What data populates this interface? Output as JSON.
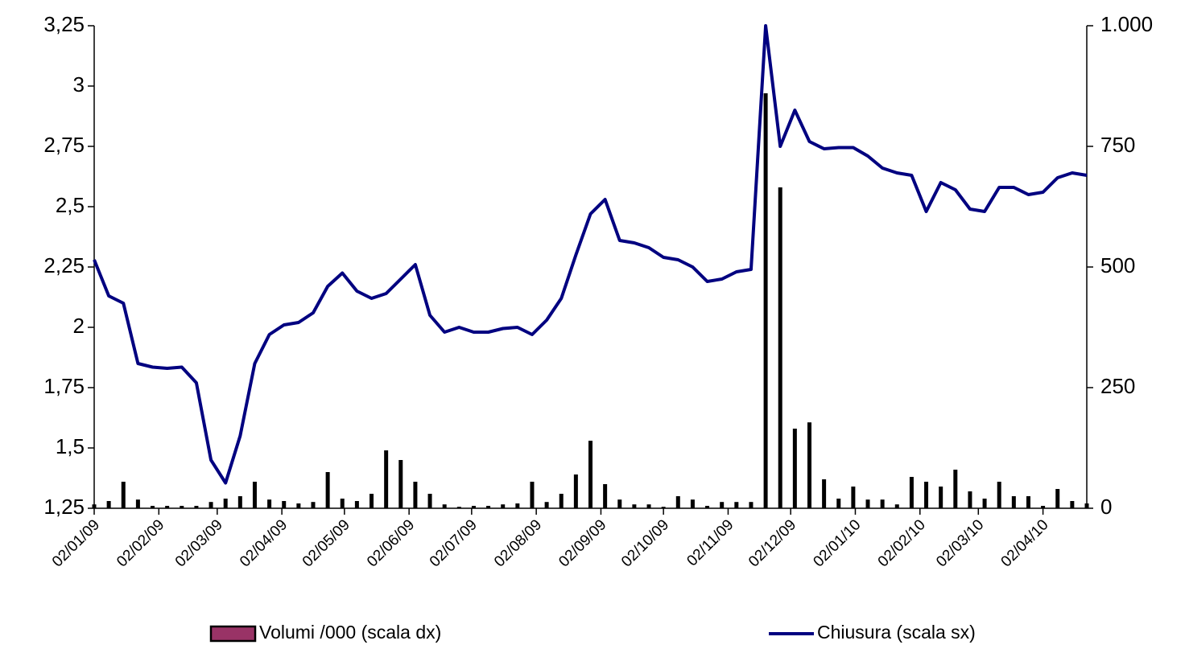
{
  "chart_data": {
    "type": "bar_line",
    "x": [
      "02/01/09",
      "09/01/09",
      "16/01/09",
      "23/01/09",
      "30/01/09",
      "06/02/09",
      "13/02/09",
      "20/02/09",
      "27/02/09",
      "06/03/09",
      "13/03/09",
      "20/03/09",
      "27/03/09",
      "03/04/09",
      "10/04/09",
      "17/04/09",
      "24/04/09",
      "01/05/09",
      "08/05/09",
      "15/05/09",
      "22/05/09",
      "29/05/09",
      "05/06/09",
      "12/06/09",
      "19/06/09",
      "26/06/09",
      "03/07/09",
      "10/07/09",
      "17/07/09",
      "24/07/09",
      "31/07/09",
      "07/08/09",
      "14/08/09",
      "21/08/09",
      "28/08/09",
      "04/09/09",
      "11/09/09",
      "18/09/09",
      "25/09/09",
      "02/10/09",
      "09/10/09",
      "16/10/09",
      "23/10/09",
      "30/10/09",
      "06/11/09",
      "13/11/09",
      "20/11/09",
      "27/11/09",
      "04/12/09",
      "11/12/09",
      "18/12/09",
      "25/12/09",
      "01/01/10",
      "08/01/10",
      "15/01/10",
      "22/01/10",
      "29/01/10",
      "05/02/10",
      "12/02/10",
      "19/02/10",
      "26/02/10",
      "05/03/10",
      "12/03/10",
      "19/03/10",
      "26/03/10",
      "02/04/10",
      "09/04/10",
      "16/04/10",
      "23/04/10"
    ],
    "series": [
      {
        "name": "Volumi /000 (scala dx)",
        "type": "bar",
        "axis": "y2",
        "color": "#000000",
        "legend_color": "#993366",
        "values": [
          8,
          15,
          55,
          18,
          5,
          5,
          5,
          5,
          13,
          20,
          25,
          55,
          18,
          15,
          10,
          13,
          75,
          20,
          15,
          30,
          120,
          100,
          55,
          30,
          8,
          3,
          5,
          5,
          8,
          10,
          55,
          13,
          30,
          70,
          140,
          50,
          18,
          8,
          8,
          3,
          25,
          18,
          5,
          13,
          13,
          13,
          860,
          665,
          165,
          178,
          60,
          20,
          45,
          18,
          18,
          8,
          65,
          55,
          45,
          80,
          35,
          20,
          55,
          25,
          25,
          5,
          40,
          15,
          10
        ]
      },
      {
        "name": "Chiusura (scala sx)",
        "type": "line",
        "axis": "y",
        "color": "#000080",
        "values": [
          2.28,
          2.13,
          2.1,
          1.85,
          1.835,
          1.83,
          1.835,
          1.77,
          1.45,
          1.355,
          1.55,
          1.85,
          1.97,
          2.01,
          2.02,
          2.06,
          2.17,
          2.225,
          2.15,
          2.12,
          2.14,
          2.2,
          2.26,
          2.05,
          1.98,
          2.0,
          1.98,
          1.98,
          1.995,
          2.0,
          1.97,
          2.03,
          2.12,
          2.3,
          2.47,
          2.53,
          2.36,
          2.35,
          2.33,
          2.29,
          2.28,
          2.25,
          2.19,
          2.2,
          2.23,
          2.24,
          3.25,
          2.75,
          2.9,
          2.77,
          2.74,
          2.745,
          2.745,
          2.71,
          2.66,
          2.64,
          2.63,
          2.48,
          2.6,
          2.57,
          2.49,
          2.48,
          2.58,
          2.58,
          2.55,
          2.56,
          2.62,
          2.64,
          2.63
        ]
      }
    ],
    "xlim": [
      "02/01/09",
      "23/04/10"
    ],
    "xticks": [
      "02/01/09",
      "02/02/09",
      "02/03/09",
      "02/04/09",
      "02/05/09",
      "02/06/09",
      "02/07/09",
      "02/08/09",
      "02/09/09",
      "02/10/09",
      "02/11/09",
      "02/12/09",
      "02/01/10",
      "02/02/10",
      "02/03/10",
      "02/04/10"
    ],
    "ylim": [
      1.25,
      3.25
    ],
    "yticks": [
      {
        "value": 1.25,
        "label": "1,25"
      },
      {
        "value": 1.5,
        "label": "1,5"
      },
      {
        "value": 1.75,
        "label": "1,75"
      },
      2,
      {
        "value": 2.25,
        "label": "2,25"
      },
      {
        "value": 2.5,
        "label": "2,5"
      },
      {
        "value": 2.75,
        "label": "2,75"
      },
      3,
      {
        "value": 3.25,
        "label": "3,25"
      }
    ],
    "y2lim": [
      0,
      1000
    ],
    "y2ticks": [
      0,
      250,
      500,
      750,
      {
        "value": 1000,
        "label": "1.000"
      }
    ],
    "legend": "bottom"
  }
}
